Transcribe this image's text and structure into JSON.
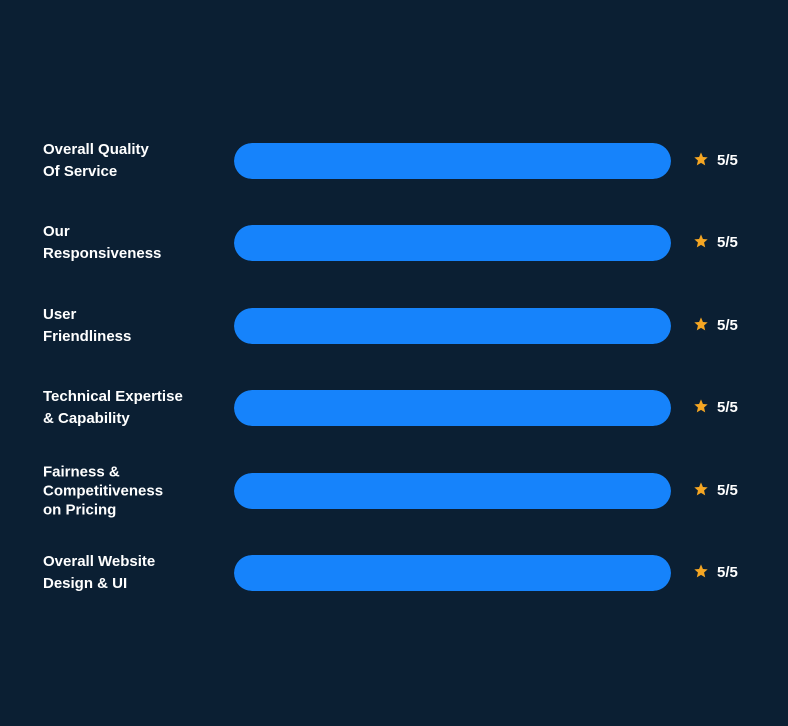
{
  "accent_color": "#1683fb",
  "star_color": "#f5a623",
  "background_color": "#0b1f33",
  "ratings": [
    {
      "label": "Overall Quality\nOf Service",
      "score_text": "5/5",
      "score": 5,
      "max": 5,
      "icon": "star-icon"
    },
    {
      "label": "Our\nResponsiveness",
      "score_text": "5/5",
      "score": 5,
      "max": 5,
      "icon": "star-icon"
    },
    {
      "label": "User\nFriendliness",
      "score_text": "5/5",
      "score": 5,
      "max": 5,
      "icon": "star-icon"
    },
    {
      "label": "Technical Expertise\n& Capability",
      "score_text": "5/5",
      "score": 5,
      "max": 5,
      "icon": "star-icon"
    },
    {
      "label": "Fairness &\nCompetitiveness\non Pricing",
      "score_text": "5/5",
      "score": 5,
      "max": 5,
      "icon": "star-icon"
    },
    {
      "label": "Overall Website\nDesign & UI",
      "score_text": "5/5",
      "score": 5,
      "max": 5,
      "icon": "star-icon"
    }
  ]
}
